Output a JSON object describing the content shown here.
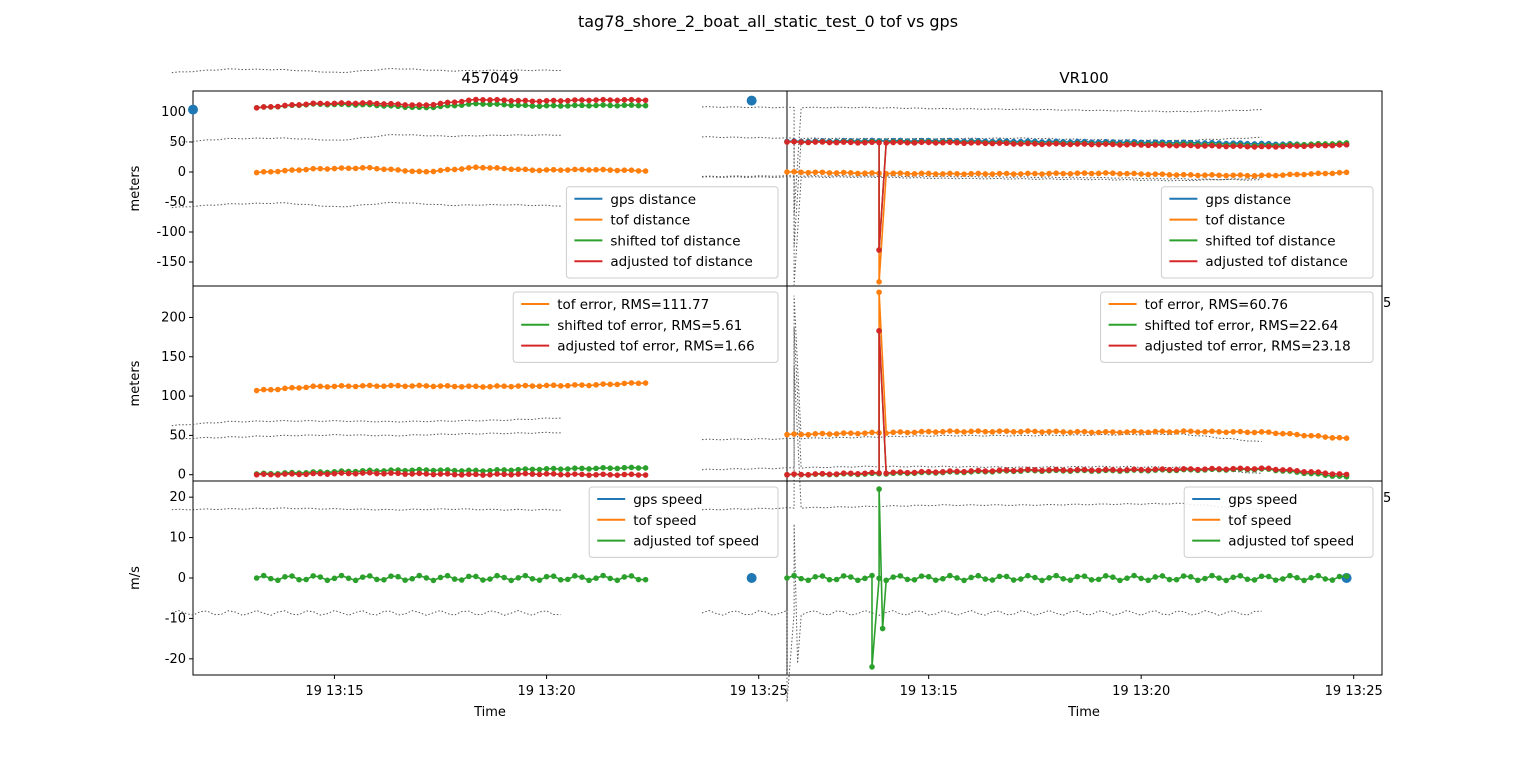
{
  "figure": {
    "suptitle": "tag78_shore_2_boat_all_static_test_0 tof vs gps"
  },
  "columns": [
    {
      "title": "457049",
      "xlabel": "Time"
    },
    {
      "title": "VR100",
      "xlabel": "Time"
    }
  ],
  "x_axis": {
    "tick_labels": [
      "19 13:15",
      "19 13:20",
      "19 13:25"
    ],
    "range": [
      "13:11:40",
      "13:25:40"
    ]
  },
  "colors": {
    "gps": "#1f77b4",
    "tof": "#ff7f0e",
    "shifted": "#2ca02c",
    "adjusted": "#d62728",
    "reference": "#555555"
  },
  "chart_data": [
    {
      "id": "457049_distance",
      "type": "line",
      "ylabel": "meters",
      "ylim": [
        -190,
        135
      ],
      "yticks": [
        100,
        50,
        0,
        -50,
        -100,
        -150
      ],
      "legend_location": "lower right",
      "legend": [
        "gps distance",
        "tof distance",
        "shifted tof distance",
        "adjusted tof distance"
      ],
      "series": [
        {
          "name": "gps distance",
          "color": "#1f77b4",
          "marker": "large-dot",
          "points": [
            [
              "13:11:40",
              104
            ],
            [
              "13:24:50",
              119
            ]
          ]
        },
        {
          "name": "tof distance",
          "color": "#ff7f0e",
          "x_range": [
            "13:13:10",
            "13:22:20"
          ],
          "y_profile": [
            -1,
            5,
            7,
            0,
            8,
            3,
            4,
            2
          ]
        },
        {
          "name": "shifted tof distance",
          "color": "#2ca02c",
          "x_range": [
            "13:13:10",
            "13:22:20"
          ],
          "y_profile": [
            107,
            113,
            112,
            107,
            114,
            110,
            111,
            111
          ]
        },
        {
          "name": "adjusted tof distance",
          "color": "#d62728",
          "x_range": [
            "13:13:10",
            "13:22:20"
          ],
          "y_profile": [
            107,
            114,
            115,
            111,
            121,
            118,
            120,
            120
          ]
        }
      ]
    },
    {
      "id": "457049_error",
      "type": "line",
      "ylabel": "meters",
      "ylim": [
        -8,
        240
      ],
      "yticks": [
        200,
        150,
        100,
        50,
        0
      ],
      "legend_location": "upper right",
      "legend": [
        "tof error, RMS=111.77",
        "shifted tof error, RMS=5.61",
        "adjusted tof error, RMS=1.66"
      ],
      "series": [
        {
          "name": "tof error, RMS=111.77",
          "color": "#ff7f0e",
          "x_range": [
            "13:13:10",
            "13:22:20"
          ],
          "y_profile": [
            107,
            112,
            113,
            113,
            112,
            113,
            114,
            117
          ]
        },
        {
          "name": "shifted tof error, RMS=5.61",
          "color": "#2ca02c",
          "x_range": [
            "13:13:10",
            "13:22:20"
          ],
          "y_profile": [
            1,
            3,
            5,
            6,
            5,
            7,
            8,
            9
          ]
        },
        {
          "name": "adjusted tof error, RMS=1.66",
          "color": "#d62728",
          "x_range": [
            "13:13:10",
            "13:22:20"
          ],
          "y_profile": [
            0,
            1,
            2,
            1,
            0,
            1,
            0,
            0
          ]
        }
      ]
    },
    {
      "id": "457049_speed",
      "type": "line",
      "ylabel": "m/s",
      "ylim": [
        -24,
        24
      ],
      "yticks": [
        20,
        10,
        0,
        -10,
        -20
      ],
      "legend_location": "upper right",
      "legend": [
        "gps speed",
        "tof speed",
        "adjusted tof speed"
      ],
      "series": [
        {
          "name": "gps speed",
          "color": "#1f77b4",
          "marker": "large-dot",
          "points": [
            [
              "13:24:50",
              0
            ]
          ]
        },
        {
          "name": "adjusted tof speed",
          "color": "#2ca02c",
          "x_range": [
            "13:13:10",
            "13:22:20"
          ],
          "y_profile": [
            0,
            0,
            0,
            0,
            0,
            0,
            0,
            0
          ]
        }
      ]
    },
    {
      "id": "VR100_distance",
      "type": "line",
      "ylabel": "",
      "ylim": [
        -190,
        135
      ],
      "legend_location": "lower right",
      "legend": [
        "gps distance",
        "tof distance",
        "shifted tof distance",
        "adjusted tof distance"
      ],
      "series": [
        {
          "name": "gps distance",
          "color": "#1f77b4",
          "x_range": [
            "13:11:40",
            "13:24:50"
          ],
          "y_profile": [
            51,
            52,
            52,
            51,
            50,
            49,
            47,
            45
          ]
        },
        {
          "name": "tof distance",
          "color": "#ff7f0e",
          "x_range": [
            "13:11:40",
            "13:24:50"
          ],
          "y_profile": [
            0,
            -2,
            -3,
            -3,
            -2,
            -5,
            -6,
            -1
          ],
          "spike": [
            "13:13:50",
            -183
          ]
        },
        {
          "name": "shifted tof distance",
          "color": "#2ca02c",
          "x_range": [
            "13:11:40",
            "13:24:50"
          ],
          "y_profile": [
            50,
            50,
            50,
            48,
            47,
            46,
            44,
            48
          ],
          "spike": [
            "13:13:50",
            -130
          ]
        },
        {
          "name": "adjusted tof distance",
          "color": "#d62728",
          "x_range": [
            "13:11:40",
            "13:24:50"
          ],
          "y_profile": [
            50,
            49,
            49,
            47,
            46,
            44,
            42,
            45
          ],
          "spike": [
            "13:13:50",
            -130
          ]
        }
      ]
    },
    {
      "id": "VR100_error",
      "type": "line",
      "ylabel": "",
      "ylim": [
        -8,
        240
      ],
      "legend_location": "upper right",
      "legend": [
        "tof error, RMS=60.76",
        "shifted tof error, RMS=22.64",
        "adjusted tof error, RMS=23.18"
      ],
      "series": [
        {
          "name": "tof error, RMS=60.76",
          "color": "#ff7f0e",
          "x_range": [
            "13:11:40",
            "13:24:50"
          ],
          "y_profile": [
            51,
            53,
            55,
            55,
            54,
            55,
            54,
            46
          ],
          "spike": [
            "13:13:50",
            232
          ]
        },
        {
          "name": "shifted tof error, RMS=22.64",
          "color": "#2ca02c",
          "x_range": [
            "13:11:40",
            "13:24:50"
          ],
          "y_profile": [
            0,
            1,
            3,
            5,
            5,
            6,
            7,
            -3
          ],
          "spike": [
            "13:13:50",
            183
          ]
        },
        {
          "name": "adjusted tof error, RMS=23.18",
          "color": "#d62728",
          "x_range": [
            "13:11:40",
            "13:24:50"
          ],
          "y_profile": [
            0,
            2,
            4,
            6,
            6,
            7,
            8,
            0
          ],
          "spike": [
            "13:13:50",
            183
          ]
        }
      ]
    },
    {
      "id": "VR100_speed",
      "type": "line",
      "ylabel": "",
      "ylim": [
        -24,
        24
      ],
      "legend_location": "upper right",
      "legend": [
        "gps speed",
        "tof speed",
        "adjusted tof speed"
      ],
      "series": [
        {
          "name": "gps speed",
          "color": "#1f77b4",
          "marker": "large-dot",
          "points": [
            [
              "13:24:50",
              0
            ]
          ]
        },
        {
          "name": "adjusted tof speed",
          "color": "#2ca02c",
          "x_range": [
            "13:11:40",
            "13:24:50"
          ],
          "y_profile": [
            0,
            0,
            0,
            0,
            0,
            0,
            0,
            0
          ],
          "spike_pairs": [
            [
              "13:13:40",
              -22
            ],
            [
              "13:13:50",
              22
            ],
            [
              "13:13:55",
              -12.5
            ]
          ]
        }
      ]
    }
  ],
  "stray_labels": [
    "5",
    "5"
  ]
}
